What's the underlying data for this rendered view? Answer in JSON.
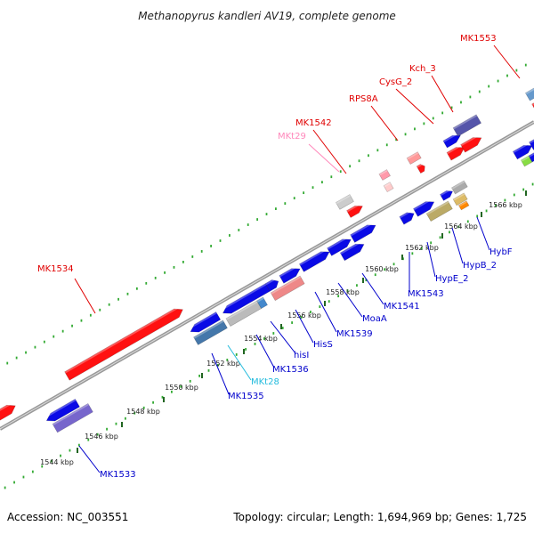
{
  "title": "Methanopyrus kandleri AV19, complete genome",
  "accession": "Accession: NC_003551",
  "summary": "Topology: circular; Length: 1,694,969 bp; Genes: 1,725",
  "colors": {
    "forward_label": "#e00000",
    "reverse_label": "#0000cc",
    "rna_label": "#ff88bb",
    "trna_label": "#22bbdd",
    "backbone": "#888888",
    "dots": "#33aa33",
    "major_tick": "#226622"
  },
  "chart_data": {
    "type": "genome-map",
    "ticks": [
      {
        "label": "1544 kbp"
      },
      {
        "label": "1546 kbp"
      },
      {
        "label": "1548 kbp"
      },
      {
        "label": "1550 kbp"
      },
      {
        "label": "1552 kbp"
      },
      {
        "label": "1554 kbp"
      },
      {
        "label": "1556 kbp"
      },
      {
        "label": "1558 kbp"
      },
      {
        "label": "1560 kbp"
      },
      {
        "label": "1562 kbp"
      },
      {
        "label": "1564 kbp"
      },
      {
        "label": "1566 kbp"
      }
    ],
    "forward_labels": [
      {
        "text": "MK1534",
        "color": "#e00000"
      },
      {
        "text": "MKt29",
        "color": "#ff88bb"
      },
      {
        "text": "MK1542",
        "color": "#e00000"
      },
      {
        "text": "RPS8A",
        "color": "#e00000"
      },
      {
        "text": "CysG_2",
        "color": "#e00000"
      },
      {
        "text": "Kch_3",
        "color": "#e00000"
      },
      {
        "text": "MK1553",
        "color": "#e00000"
      }
    ],
    "reverse_labels": [
      {
        "text": "MK1533",
        "color": "#0000cc"
      },
      {
        "text": "MK1535",
        "color": "#0000cc"
      },
      {
        "text": "MKt28",
        "color": "#22bbdd"
      },
      {
        "text": "MK1536",
        "color": "#0000cc"
      },
      {
        "text": "hisI",
        "color": "#0000cc"
      },
      {
        "text": "HisS",
        "color": "#0000cc"
      },
      {
        "text": "MK1539",
        "color": "#0000cc"
      },
      {
        "text": "MoaA",
        "color": "#0000cc"
      },
      {
        "text": "MK1541",
        "color": "#0000cc"
      },
      {
        "text": "MK1543",
        "color": "#0000cc"
      },
      {
        "text": "HypE_2",
        "color": "#0000cc"
      },
      {
        "text": "HypB_2",
        "color": "#0000cc"
      },
      {
        "text": "HybF",
        "color": "#0000cc"
      }
    ]
  }
}
